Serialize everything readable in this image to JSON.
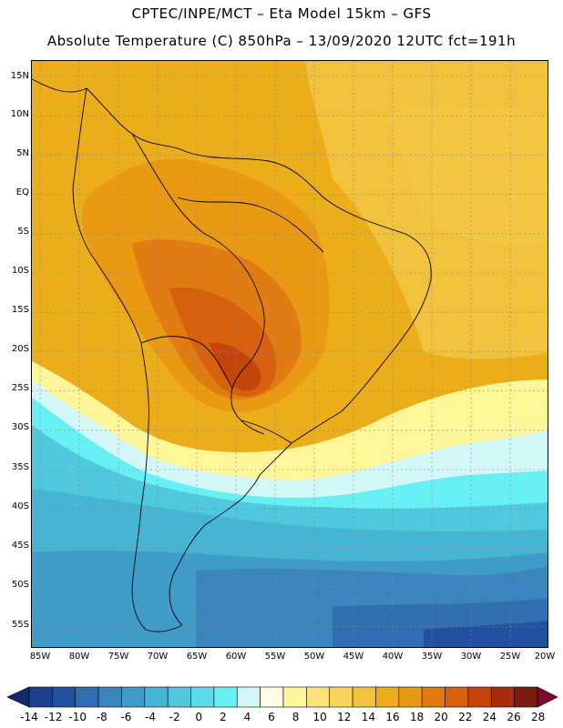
{
  "header": {
    "line1": "CPTEC/INPE/MCT –  Eta Model 15km – GFS",
    "line2": "Absolute Temperature (C) 850hPa – 13/09/2020 12UTC fct=191h"
  },
  "map": {
    "lat_labels": [
      "15N",
      "10N",
      "5N",
      "EQ",
      "5S",
      "10S",
      "15S",
      "20S",
      "25S",
      "30S",
      "35S",
      "40S",
      "45S",
      "50S",
      "55S"
    ],
    "lon_labels": [
      "85W",
      "80W",
      "75W",
      "70W",
      "65W",
      "60W",
      "55W",
      "50W",
      "45W",
      "40W",
      "35W",
      "30W",
      "25W",
      "20W"
    ]
  },
  "legend": {
    "labels": [
      "-14",
      "-12",
      "-10",
      "-8",
      "-6",
      "-4",
      "-2",
      "0",
      "2",
      "4",
      "6",
      "8",
      "10",
      "12",
      "14",
      "16",
      "18",
      "20",
      "22",
      "24",
      "26",
      "28"
    ],
    "colors": [
      "#1c3f8e",
      "#21519f",
      "#2f6eb0",
      "#3a85bd",
      "#3f9cc8",
      "#46b4d3",
      "#50c8de",
      "#5cdcea",
      "#66f0f4",
      "#d3f6f7",
      "#fffbe5",
      "#fff69a",
      "#fde27a",
      "#f8d458",
      "#f1c23c",
      "#ecad1a",
      "#e99a13",
      "#e07c12",
      "#d6600d",
      "#c4440b",
      "#a82c0c",
      "#7d1b10"
    ],
    "under_color": "#16286b",
    "over_color": "#7a0a2a"
  }
}
